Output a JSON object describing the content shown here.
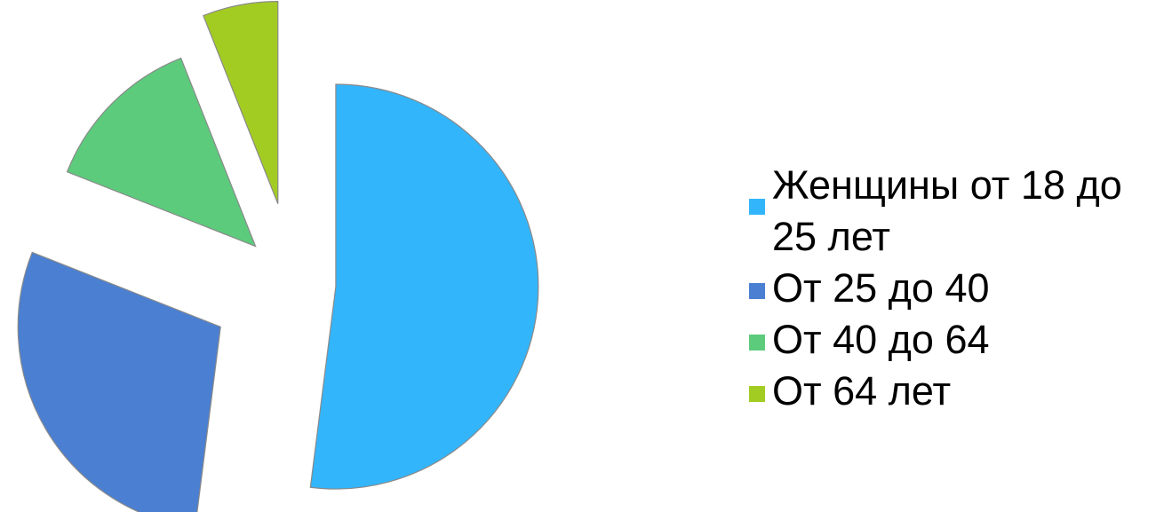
{
  "chart_data": {
    "type": "pie",
    "title": "",
    "exploded": true,
    "slices": [
      {
        "label": "Женщины от 18 до 25 лет",
        "value": 52,
        "color": "#33b5fb"
      },
      {
        "label": "От 25 до 40",
        "value": 29,
        "color": "#4a7fd1"
      },
      {
        "label": "От 40 до 64",
        "value": 13,
        "color": "#5ccb7c"
      },
      {
        "label": "От 64 лет",
        "value": 6,
        "color": "#a3cc22"
      }
    ],
    "legend_position": "right"
  }
}
